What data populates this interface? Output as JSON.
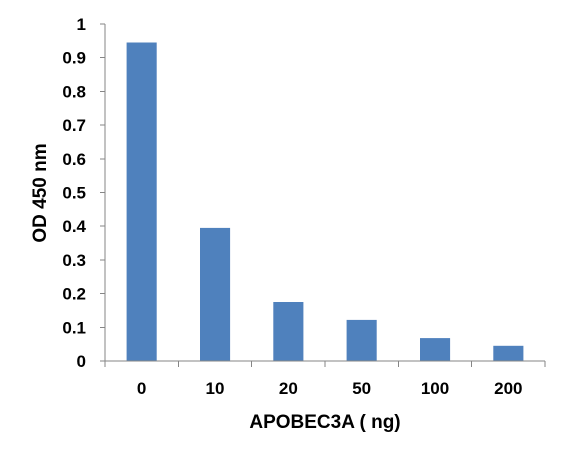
{
  "chart_data": {
    "type": "bar",
    "categories": [
      "0",
      "10",
      "20",
      "50",
      "100",
      "200"
    ],
    "values": [
      0.945,
      0.395,
      0.175,
      0.122,
      0.068,
      0.045
    ],
    "title": "",
    "xlabel": "APOBEC3A ( ng)",
    "ylabel": "OD 450 nm",
    "ylim": [
      0,
      1
    ],
    "yticks": [
      "0",
      "0.1",
      "0.2",
      "0.3",
      "0.4",
      "0.5",
      "0.6",
      "0.7",
      "0.8",
      "0.9",
      "1"
    ],
    "grid": false,
    "legend": "none",
    "bar_color": "#4f81bd"
  }
}
